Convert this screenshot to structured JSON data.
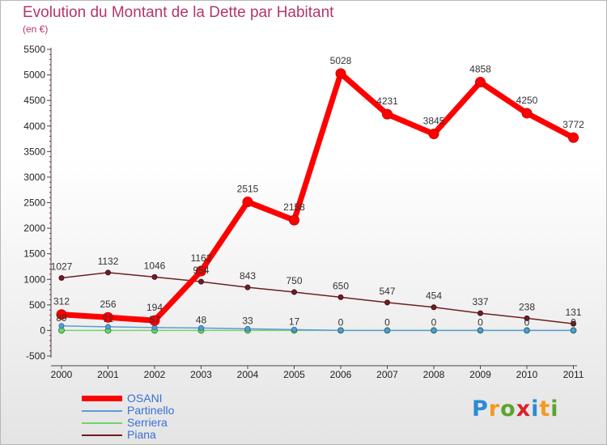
{
  "title": "Evolution du Montant de la Dette par Habitant",
  "subtitle": "(en €)",
  "logo": {
    "text": "Proxiti",
    "letters": [
      "P",
      "r",
      "o",
      "x",
      "i",
      "t",
      "i"
    ],
    "colors": [
      "#2a8bd6",
      "#f39a1e",
      "#5aa52c",
      "#d8232a",
      "#2a8bd6",
      "#f39a1e",
      "#5aa52c"
    ]
  },
  "chart_data": {
    "type": "line",
    "title": "Evolution du Montant de la Dette par Habitant",
    "ylabel": "(en €)",
    "xlabel": "",
    "x": [
      "2000",
      "2001",
      "2002",
      "2003",
      "2004",
      "2005",
      "2006",
      "2007",
      "2008",
      "2009",
      "2010",
      "2011"
    ],
    "ylim": [
      -500,
      5500
    ],
    "yticks": [
      -500,
      0,
      500,
      1000,
      1500,
      2000,
      2500,
      3000,
      3500,
      4000,
      4500,
      5000,
      5500
    ],
    "grid": false,
    "legend": "bottom-left",
    "series": [
      {
        "name": "Piana",
        "color": "#6e1e22",
        "values": [
          1027,
          1132,
          1046,
          954,
          843,
          750,
          650,
          547,
          454,
          337,
          238,
          131
        ],
        "labels": [
          "1027",
          "1132",
          "1046",
          "954",
          "843",
          "750",
          "650",
          "547",
          "454",
          "337",
          "238",
          "131"
        ]
      },
      {
        "name": "Serriera",
        "color": "#6fd46a",
        "values": [
          0,
          0,
          0,
          0,
          0,
          0,
          0,
          0,
          0,
          0,
          0,
          0
        ],
        "labels": []
      },
      {
        "name": "Partinello",
        "color": "#5b9bd5",
        "values": [
          89,
          71,
          57,
          48,
          33,
          17,
          0,
          0,
          0,
          0,
          0,
          0
        ],
        "labels": [
          "89",
          "71",
          "57",
          "48",
          "33",
          "17",
          "0",
          "0",
          "0",
          "0",
          "0",
          "0"
        ]
      },
      {
        "name": "OSANI",
        "color": "#ff0000",
        "values": [
          312,
          256,
          194,
          1162,
          2515,
          2158,
          5028,
          4231,
          3845,
          4858,
          4250,
          3772
        ],
        "labels": [
          "312",
          "256",
          "194",
          "1162",
          "2515",
          "2158",
          "5028",
          "4231",
          "3845",
          "4858",
          "4250",
          "3772"
        ]
      }
    ],
    "legend_order": [
      "OSANI",
      "Partinello",
      "Serriera",
      "Piana"
    ]
  }
}
